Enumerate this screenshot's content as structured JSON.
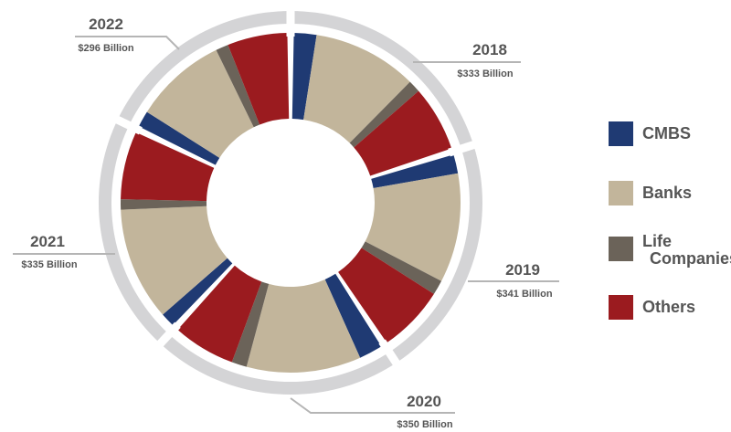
{
  "chart_data": {
    "type": "donut",
    "series_order": [
      "CMBS",
      "Banks",
      "Life Companies",
      "Others"
    ],
    "colors": {
      "CMBS": "#1f3a73",
      "Banks": "#c2b59b",
      "Life Companies": "#6b6359",
      "Others": "#9b1b1f",
      "outer_ring": "#d4d4d6",
      "leader_line": "#b5b5b5"
    },
    "years": [
      {
        "year": "2018",
        "amount": "$333 Billion",
        "total": 333,
        "shares": {
          "CMBS": 0.11,
          "Banks": 0.51,
          "Life Companies": 0.06,
          "Others": 0.32
        }
      },
      {
        "year": "2019",
        "amount": "$341 Billion",
        "total": 341,
        "shares": {
          "CMBS": 0.09,
          "Banks": 0.52,
          "Life Companies": 0.07,
          "Others": 0.32
        }
      },
      {
        "year": "2020",
        "amount": "$350 Billion",
        "total": 350,
        "shares": {
          "CMBS": 0.11,
          "Banks": 0.53,
          "Life Companies": 0.07,
          "Others": 0.29
        }
      },
      {
        "year": "2021",
        "amount": "$335 Billion",
        "total": 335,
        "shares": {
          "CMBS": 0.07,
          "Banks": 0.55,
          "Life Companies": 0.05,
          "Others": 0.33
        }
      },
      {
        "year": "2022",
        "amount": "$296 Billion",
        "total": 296,
        "shares": {
          "CMBS": 0.09,
          "Banks": 0.51,
          "Life Companies": 0.07,
          "Others": 0.33
        }
      }
    ]
  },
  "legend": [
    {
      "label": "CMBS",
      "color": "#1f3a73"
    },
    {
      "label": "Banks",
      "color": "#c2b59b"
    },
    {
      "label": "Life Companies",
      "color": "#6b6359"
    },
    {
      "label": "Others",
      "color": "#9b1b1f"
    }
  ]
}
